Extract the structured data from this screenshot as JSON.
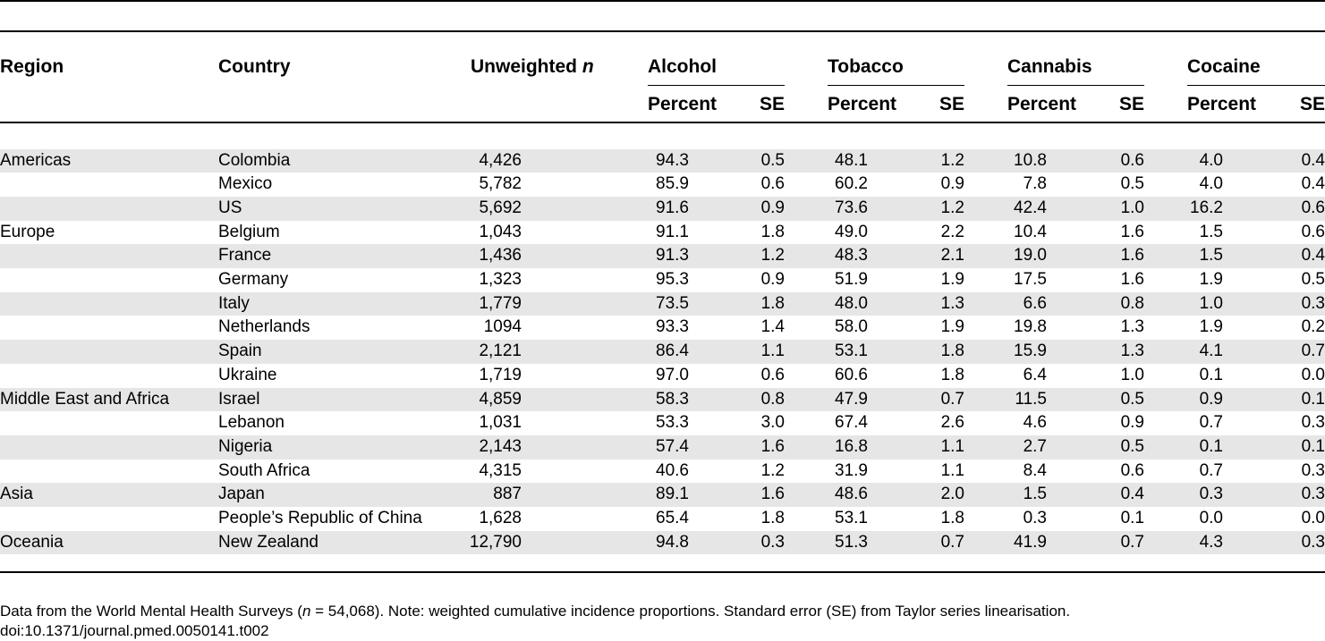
{
  "table": {
    "headers": {
      "region": "Region",
      "country": "Country",
      "unweighted_n": "Unweighted",
      "unweighted_n_var": "n",
      "groups": [
        "Alcohol",
        "Tobacco",
        "Cannabis",
        "Cocaine"
      ],
      "percent": "Percent",
      "se": "SE"
    },
    "rows": [
      {
        "region": "Americas",
        "country": "Colombia",
        "n": "4,426",
        "vals": [
          "94.3",
          "0.5",
          "48.1",
          "1.2",
          "10.8",
          "0.6",
          "4.0",
          "0.4"
        ]
      },
      {
        "region": "",
        "country": "Mexico",
        "n": "5,782",
        "vals": [
          "85.9",
          "0.6",
          "60.2",
          "0.9",
          "7.8",
          "0.5",
          "4.0",
          "0.4"
        ]
      },
      {
        "region": "",
        "country": "US",
        "n": "5,692",
        "vals": [
          "91.6",
          "0.9",
          "73.6",
          "1.2",
          "42.4",
          "1.0",
          "16.2",
          "0.6"
        ]
      },
      {
        "region": "Europe",
        "country": "Belgium",
        "n": "1,043",
        "vals": [
          "91.1",
          "1.8",
          "49.0",
          "2.2",
          "10.4",
          "1.6",
          "1.5",
          "0.6"
        ]
      },
      {
        "region": "",
        "country": "France",
        "n": "1,436",
        "vals": [
          "91.3",
          "1.2",
          "48.3",
          "2.1",
          "19.0",
          "1.6",
          "1.5",
          "0.4"
        ]
      },
      {
        "region": "",
        "country": "Germany",
        "n": "1,323",
        "vals": [
          "95.3",
          "0.9",
          "51.9",
          "1.9",
          "17.5",
          "1.6",
          "1.9",
          "0.5"
        ]
      },
      {
        "region": "",
        "country": "Italy",
        "n": "1,779",
        "vals": [
          "73.5",
          "1.8",
          "48.0",
          "1.3",
          "6.6",
          "0.8",
          "1.0",
          "0.3"
        ]
      },
      {
        "region": "",
        "country": "Netherlands",
        "n": "1094",
        "vals": [
          "93.3",
          "1.4",
          "58.0",
          "1.9",
          "19.8",
          "1.3",
          "1.9",
          "0.2"
        ]
      },
      {
        "region": "",
        "country": "Spain",
        "n": "2,121",
        "vals": [
          "86.4",
          "1.1",
          "53.1",
          "1.8",
          "15.9",
          "1.3",
          "4.1",
          "0.7"
        ]
      },
      {
        "region": "",
        "country": "Ukraine",
        "n": "1,719",
        "vals": [
          "97.0",
          "0.6",
          "60.6",
          "1.8",
          "6.4",
          "1.0",
          "0.1",
          "0.0"
        ]
      },
      {
        "region": "Middle East and Africa",
        "country": "Israel",
        "n": "4,859",
        "vals": [
          "58.3",
          "0.8",
          "47.9",
          "0.7",
          "11.5",
          "0.5",
          "0.9",
          "0.1"
        ]
      },
      {
        "region": "",
        "country": "Lebanon",
        "n": "1,031",
        "vals": [
          "53.3",
          "3.0",
          "67.4",
          "2.6",
          "4.6",
          "0.9",
          "0.7",
          "0.3"
        ]
      },
      {
        "region": "",
        "country": "Nigeria",
        "n": "2,143",
        "vals": [
          "57.4",
          "1.6",
          "16.8",
          "1.1",
          "2.7",
          "0.5",
          "0.1",
          "0.1"
        ]
      },
      {
        "region": "",
        "country": "South Africa",
        "n": "4,315",
        "vals": [
          "40.6",
          "1.2",
          "31.9",
          "1.1",
          "8.4",
          "0.6",
          "0.7",
          "0.3"
        ]
      },
      {
        "region": "Asia",
        "country": "Japan",
        "n": "887",
        "vals": [
          "89.1",
          "1.6",
          "48.6",
          "2.0",
          "1.5",
          "0.4",
          "0.3",
          "0.3"
        ]
      },
      {
        "region": "",
        "country": "People’s Republic of China",
        "n": "1,628",
        "vals": [
          "65.4",
          "1.8",
          "53.1",
          "1.8",
          "0.3",
          "0.1",
          "0.0",
          "0.0"
        ]
      },
      {
        "region": "Oceania",
        "country": "New Zealand",
        "n": "12,790",
        "vals": [
          "94.8",
          "0.3",
          "51.3",
          "0.7",
          "41.9",
          "0.7",
          "4.3",
          "0.3"
        ]
      }
    ]
  },
  "footnote": {
    "part1": "Data from the World Mental Health Surveys (",
    "var": "n",
    "part2": " = 54,068). Note: weighted cumulative incidence proportions. Standard error (SE) from Taylor series linearisation.",
    "doi": "doi:10.1371/journal.pmed.0050141.t002"
  }
}
